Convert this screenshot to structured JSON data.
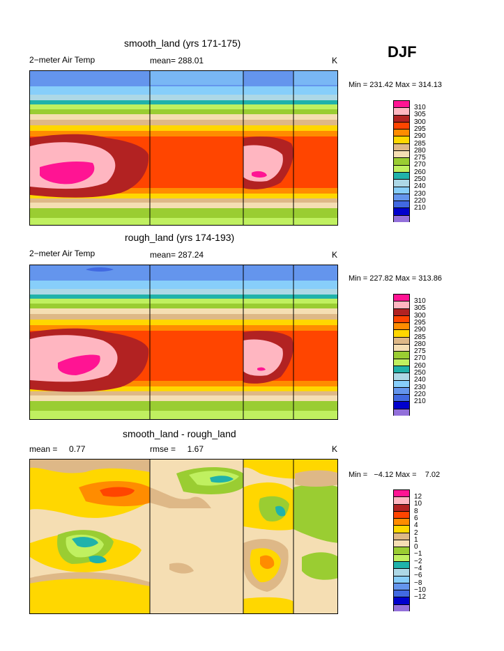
{
  "season": "DJF",
  "panels": [
    {
      "title": "smooth_land (yrs 171-175)",
      "left_label": "2−meter Air Temp",
      "center_label": "mean= 288.01",
      "unit": "K",
      "minmax": "Min = 231.42 Max = 314.13"
    },
    {
      "title": "rough_land (yrs 174-193)",
      "left_label": "2−meter Air Temp",
      "center_label": "mean= 287.24",
      "unit": "K",
      "minmax": "Min = 227.82 Max = 313.86"
    },
    {
      "title": "smooth_land - rough_land",
      "left_label": "mean =     0.77",
      "center_label": "rmse =     1.67",
      "unit": "K",
      "minmax": "Min =   −4.12 Max =    7.02"
    }
  ],
  "chart_data": [
    {
      "type": "heatmap",
      "title": "smooth_land (yrs 171-175)",
      "variable": "2-meter Air Temp",
      "units": "K",
      "mean": 288.01,
      "min": 231.42,
      "max": 314.13,
      "contour_levels": [
        210,
        220,
        230,
        240,
        250,
        260,
        270,
        275,
        280,
        285,
        290,
        295,
        300,
        305,
        310
      ],
      "legend_labels": [
        "310",
        "305",
        "300",
        "295",
        "290",
        "285",
        "280",
        "275",
        "270",
        "260",
        "250",
        "240",
        "230",
        "220",
        "210"
      ],
      "legend_colors": [
        "#ff1493",
        "#ffb6c1",
        "#b22222",
        "#ff4500",
        "#ff8c00",
        "#ffd700",
        "#deb887",
        "#f5deb3",
        "#9acd32",
        "#c0f060",
        "#20b2aa",
        "#add8e6",
        "#87cefa",
        "#6495ed",
        "#4169e1",
        "#0000cd",
        "#9370db"
      ]
    },
    {
      "type": "heatmap",
      "title": "rough_land (yrs 174-193)",
      "variable": "2-meter Air Temp",
      "units": "K",
      "mean": 287.24,
      "min": 227.82,
      "max": 313.86,
      "contour_levels": [
        210,
        220,
        230,
        240,
        250,
        260,
        270,
        275,
        280,
        285,
        290,
        295,
        300,
        305,
        310
      ],
      "legend_labels": [
        "310",
        "305",
        "300",
        "295",
        "290",
        "285",
        "280",
        "275",
        "270",
        "260",
        "250",
        "240",
        "230",
        "220",
        "210"
      ]
    },
    {
      "type": "heatmap",
      "title": "smooth_land - rough_land",
      "units": "K",
      "mean": 0.77,
      "rmse": 1.67,
      "min": -4.12,
      "max": 7.02,
      "contour_levels": [
        -12,
        -10,
        -8,
        -6,
        -4,
        -2,
        -1,
        0,
        1,
        2,
        4,
        6,
        8,
        10,
        12
      ],
      "legend_labels": [
        "12",
        "10",
        "8",
        "6",
        "4",
        "2",
        "1",
        "0",
        "−1",
        "−2",
        "−4",
        "−6",
        "−8",
        "−10",
        "−12"
      ]
    }
  ],
  "colors": {
    "c310": "#ff1493",
    "c305": "#ffb6c1",
    "c300": "#b22222",
    "c295": "#ff4500",
    "c290": "#ff8c00",
    "c285": "#ffd700",
    "c280": "#deb887",
    "c275": "#f5deb3",
    "c270": "#9acd32",
    "c260": "#c0f060",
    "c250": "#20b2aa",
    "c240": "#add8e6",
    "c230": "#87cefa",
    "c220": "#6495ed",
    "c210": "#4169e1",
    "cdeep": "#0000cd",
    "cviolet": "#9370db"
  }
}
